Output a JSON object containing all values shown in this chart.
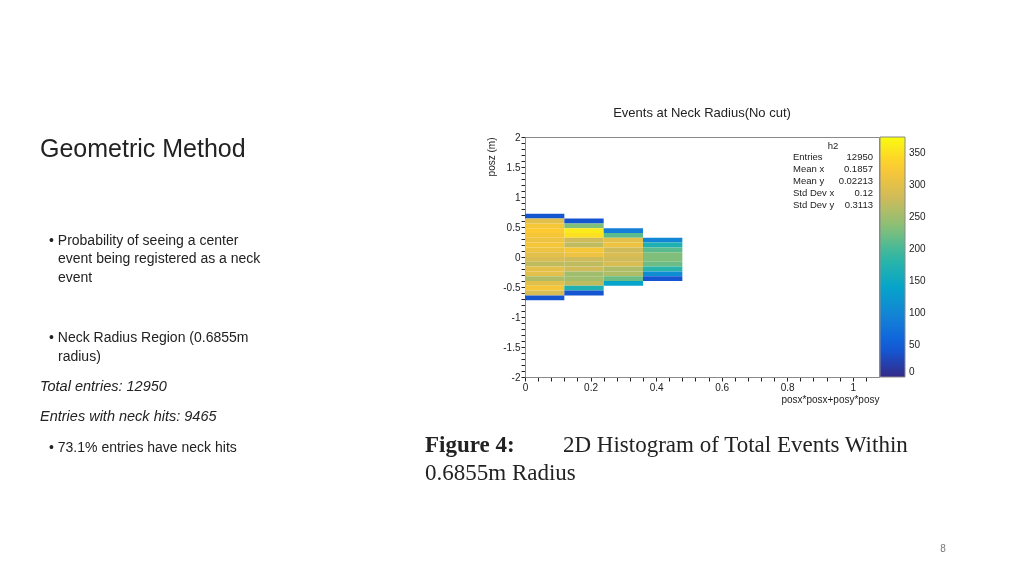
{
  "chart_data": {
    "type": "heatmap",
    "title": "Events at Neck Radius(No cut)",
    "xlabel": "posx*posx+posy*posy",
    "ylabel": "posz (m)",
    "x": [
      0.06,
      0.18,
      0.3,
      0.42
    ],
    "y": [
      0.68,
      0.6,
      0.52,
      0.44,
      0.36,
      0.28,
      0.2,
      0.12,
      0.04,
      -0.04,
      -0.12,
      -0.2,
      -0.28,
      -0.36,
      -0.44,
      -0.52,
      -0.6,
      -0.68
    ],
    "cells": [
      [
        40,
        null,
        null,
        null
      ],
      [
        300,
        40,
        null,
        null
      ],
      [
        320,
        230,
        null,
        null
      ],
      [
        330,
        360,
        90,
        null
      ],
      [
        320,
        350,
        210,
        null
      ],
      [
        310,
        280,
        300,
        100
      ],
      [
        320,
        270,
        310,
        170
      ],
      [
        310,
        320,
        280,
        210
      ],
      [
        300,
        310,
        290,
        230
      ],
      [
        290,
        280,
        280,
        230
      ],
      [
        270,
        270,
        290,
        220
      ],
      [
        300,
        280,
        260,
        180
      ],
      [
        300,
        250,
        260,
        110
      ],
      [
        260,
        250,
        220,
        40
      ],
      [
        300,
        270,
        140,
        null
      ],
      [
        320,
        170,
        null,
        null
      ],
      [
        290,
        40,
        null,
        null
      ],
      [
        40,
        null,
        null,
        null
      ]
    ],
    "xlim": [
      0,
      1.08
    ],
    "ylim": [
      -2,
      2
    ],
    "xticks": [
      0,
      {
        "value": 0.04,
        "label": null
      },
      {
        "value": 0.08,
        "label": null
      },
      {
        "value": 0.12,
        "label": null
      },
      {
        "value": 0.16,
        "label": null
      },
      0.2,
      {
        "value": 0.24,
        "label": null
      },
      {
        "value": 0.28,
        "label": null
      },
      {
        "value": 0.32,
        "label": null
      },
      {
        "value": 0.36,
        "label": null
      },
      0.4,
      {
        "value": 0.44,
        "label": null
      },
      {
        "value": 0.48,
        "label": null
      },
      {
        "value": 0.52,
        "label": null
      },
      {
        "value": 0.56,
        "label": null
      },
      0.6,
      {
        "value": 0.64,
        "label": null
      },
      {
        "value": 0.68,
        "label": null
      },
      {
        "value": 0.72,
        "label": null
      },
      {
        "value": 0.76,
        "label": null
      },
      0.8,
      {
        "value": 0.84,
        "label": null
      },
      {
        "value": 0.88,
        "label": null
      },
      {
        "value": 0.92,
        "label": null
      },
      {
        "value": 0.96,
        "label": null
      },
      1,
      {
        "value": 1.04,
        "label": null
      }
    ],
    "yticks": [
      -2,
      {
        "value": -1.9,
        "label": null
      },
      {
        "value": -1.8,
        "label": null
      },
      {
        "value": -1.7,
        "label": null
      },
      {
        "value": -1.6,
        "label": null
      },
      -1.5,
      {
        "value": -1.4,
        "label": null
      },
      {
        "value": -1.3,
        "label": null
      },
      {
        "value": -1.2,
        "label": null
      },
      {
        "value": -1.1,
        "label": null
      },
      -1,
      {
        "value": -0.9,
        "label": null
      },
      {
        "value": -0.8,
        "label": null
      },
      {
        "value": -0.7,
        "label": null
      },
      {
        "value": -0.6,
        "label": null
      },
      -0.5,
      {
        "value": -0.4,
        "label": null
      },
      {
        "value": -0.3,
        "label": null
      },
      {
        "value": -0.2,
        "label": null
      },
      {
        "value": -0.1,
        "label": null
      },
      0,
      {
        "value": 0.1,
        "label": null
      },
      {
        "value": 0.2,
        "label": null
      },
      {
        "value": 0.3,
        "label": null
      },
      {
        "value": 0.4,
        "label": null
      },
      0.5,
      {
        "value": 0.6,
        "label": null
      },
      {
        "value": 0.7,
        "label": null
      },
      {
        "value": 0.8,
        "label": null
      },
      {
        "value": 0.9,
        "label": null
      },
      1,
      {
        "value": 1.1,
        "label": null
      },
      {
        "value": 1.2,
        "label": null
      },
      {
        "value": 1.3,
        "label": null
      },
      {
        "value": 1.4,
        "label": null
      },
      1.5,
      {
        "value": 1.6,
        "label": null
      },
      {
        "value": 1.7,
        "label": null
      },
      {
        "value": 1.8,
        "label": null
      },
      {
        "value": 1.9,
        "label": null
      },
      2
    ],
    "clim": [
      0,
      375
    ],
    "cticks": [
      0,
      50,
      100,
      150,
      200,
      250,
      300,
      350
    ],
    "annotations": [
      "Geometric Method",
      "• Probability of seeing a center\nevent being registered as a neck\nevent",
      "• Neck Radius Region (0.6855m\nradius)",
      "Total entries: 12950",
      "Entries with neck hits: 9465",
      "• 73.1% entries have neck hits",
      "Figure 4:",
      "2D Histogram of Total Events Within",
      "0.6855m Radius",
      "8",
      "h2",
      "Entries",
      "12950",
      "Mean x",
      "0.1857",
      "Mean y",
      "0.02213",
      "Std Dev x",
      "0.12",
      "Std Dev y",
      "0.3113"
    ]
  }
}
